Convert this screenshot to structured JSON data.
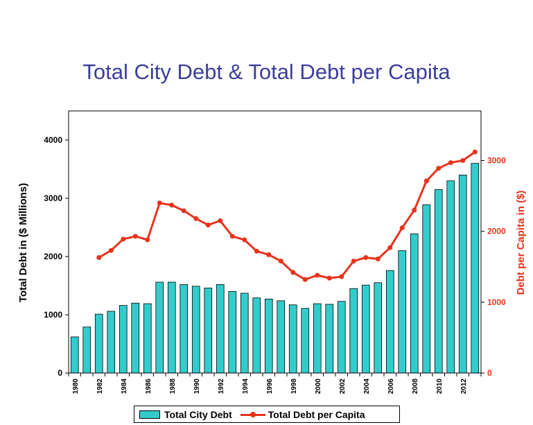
{
  "chart_data": {
    "type": "bar+line",
    "title": "Total City Debt & Total Debt per Capita",
    "x": [
      1980,
      1981,
      1982,
      1983,
      1984,
      1985,
      1986,
      1987,
      1988,
      1989,
      1990,
      1991,
      1992,
      1993,
      1994,
      1995,
      1996,
      1997,
      1998,
      1999,
      2000,
      2001,
      2002,
      2003,
      2004,
      2005,
      2006,
      2007,
      2008,
      2009,
      2010,
      2011,
      2012,
      2013
    ],
    "x_tick_labels": [
      "1980",
      "1982",
      "1984",
      "1986",
      "1988",
      "1990",
      "1992",
      "1994",
      "1996",
      "1998",
      "2000",
      "2002",
      "2004",
      "2006",
      "2008",
      "2010",
      "2012"
    ],
    "series": [
      {
        "name": "Total City Debt",
        "type": "bar",
        "axis": "left",
        "color": "#33cccc",
        "values": [
          620,
          790,
          1010,
          1060,
          1160,
          1200,
          1190,
          1560,
          1560,
          1520,
          1490,
          1460,
          1520,
          1400,
          1370,
          1290,
          1270,
          1240,
          1170,
          1110,
          1190,
          1180,
          1230,
          1450,
          1510,
          1550,
          1760,
          2100,
          2390,
          2890,
          3150,
          3300,
          3400,
          3600
        ]
      },
      {
        "name": "Total Debt per Capita",
        "type": "line",
        "axis": "right",
        "color": "#e8331b",
        "values": [
          null,
          null,
          1630,
          1730,
          1890,
          1930,
          1880,
          2400,
          2370,
          2290,
          2180,
          2090,
          2150,
          1930,
          1880,
          1720,
          1670,
          1580,
          1420,
          1320,
          1380,
          1340,
          1360,
          1580,
          1630,
          1610,
          1770,
          2050,
          2300,
          2710,
          2890,
          2970,
          3000,
          3120
        ]
      }
    ],
    "ylabel_left": "Total Debt in ($ Millions)",
    "ylabel_right": "Debt per Capita in ($)",
    "ylim_left": [
      0,
      4500
    ],
    "ylim_right": [
      0,
      3700
    ],
    "yticks_left": [
      "0",
      "1000",
      "2000",
      "3000",
      "4000"
    ],
    "yticks_right": [
      "0",
      "1000",
      "2000",
      "3000"
    ],
    "yticks_left_values": [
      0,
      1000,
      2000,
      3000,
      4000
    ],
    "yticks_right_values": [
      0,
      1000,
      2000,
      3000
    ],
    "grid": false,
    "legend_position": "bottom"
  }
}
